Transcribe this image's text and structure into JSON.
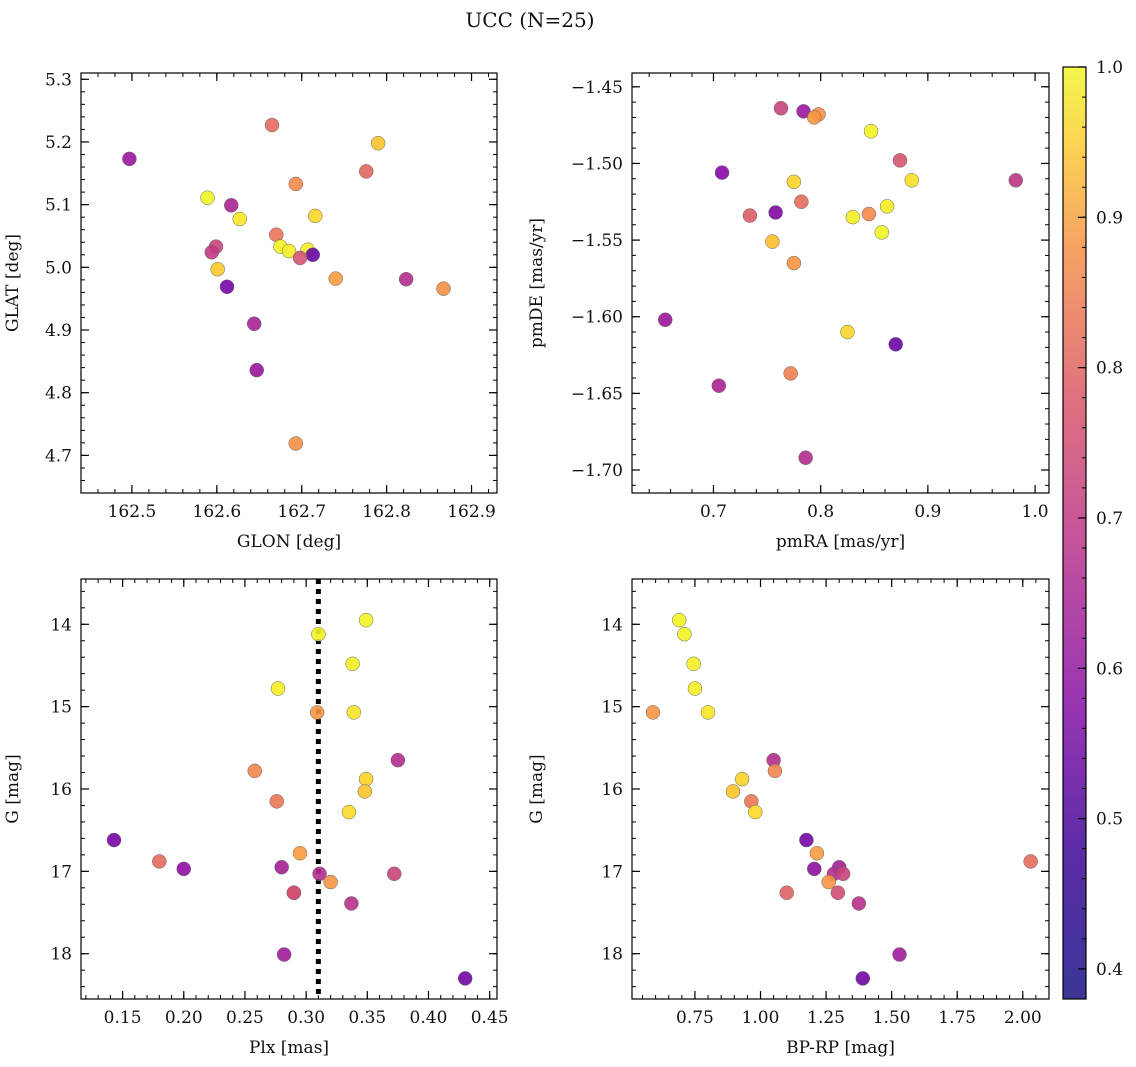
{
  "title": "UCC (N=25)",
  "colorbar": {
    "range": [
      0.38,
      1.0
    ],
    "ticks": [
      0.4,
      0.5,
      0.6,
      0.7,
      0.8,
      0.9,
      1.0
    ],
    "tick_labels": [
      "0.4",
      "0.5",
      "0.6",
      "0.7",
      "0.8",
      "0.9",
      "1.0"
    ],
    "colormap": "plasma"
  },
  "chart_data": [
    {
      "type": "scatter",
      "id": "glon-glat",
      "xlabel": "GLON [deg]",
      "ylabel": "GLAT [deg]",
      "xlim": [
        162.44,
        162.93
      ],
      "ylim": [
        4.64,
        5.31
      ],
      "y_inverted": false,
      "xticks": [
        162.5,
        162.6,
        162.7,
        162.8,
        162.9
      ],
      "xtick_labels": [
        "162.5",
        "162.6",
        "162.7",
        "162.8",
        "162.9"
      ],
      "yticks": [
        4.7,
        4.8,
        4.9,
        5.0,
        5.1,
        5.2,
        5.3
      ],
      "ytick_labels": [
        "4.7",
        "4.8",
        "4.9",
        "5.0",
        "5.1",
        "5.2",
        "5.3"
      ],
      "points": [
        {
          "x": 162.497,
          "y": 5.173,
          "c": 0.5
        },
        {
          "x": 162.665,
          "y": 5.227,
          "c": 0.68
        },
        {
          "x": 162.79,
          "y": 5.198,
          "c": 0.84
        },
        {
          "x": 162.776,
          "y": 5.153,
          "c": 0.67
        },
        {
          "x": 162.693,
          "y": 5.133,
          "c": 0.74
        },
        {
          "x": 162.589,
          "y": 5.111,
          "c": 0.98
        },
        {
          "x": 162.617,
          "y": 5.099,
          "c": 0.53
        },
        {
          "x": 162.716,
          "y": 5.082,
          "c": 0.88
        },
        {
          "x": 162.627,
          "y": 5.077,
          "c": 0.92
        },
        {
          "x": 162.67,
          "y": 5.052,
          "c": 0.7
        },
        {
          "x": 162.599,
          "y": 5.033,
          "c": 0.6
        },
        {
          "x": 162.675,
          "y": 5.033,
          "c": 0.97
        },
        {
          "x": 162.594,
          "y": 5.024,
          "c": 0.58
        },
        {
          "x": 162.685,
          "y": 5.026,
          "c": 0.96
        },
        {
          "x": 162.707,
          "y": 5.028,
          "c": 0.95
        },
        {
          "x": 162.713,
          "y": 5.02,
          "c": 0.42
        },
        {
          "x": 162.698,
          "y": 5.015,
          "c": 0.63
        },
        {
          "x": 162.601,
          "y": 4.997,
          "c": 0.85
        },
        {
          "x": 162.74,
          "y": 4.982,
          "c": 0.77
        },
        {
          "x": 162.823,
          "y": 4.981,
          "c": 0.55
        },
        {
          "x": 162.867,
          "y": 4.966,
          "c": 0.75
        },
        {
          "x": 162.612,
          "y": 4.969,
          "c": 0.44
        },
        {
          "x": 162.644,
          "y": 4.91,
          "c": 0.53
        },
        {
          "x": 162.647,
          "y": 4.836,
          "c": 0.5
        },
        {
          "x": 162.693,
          "y": 4.719,
          "c": 0.75
        }
      ]
    },
    {
      "type": "scatter",
      "id": "pmra-pmde",
      "xlabel": "pmRA [mas/yr]",
      "ylabel": "pmDE [mas/yr]",
      "xlim": [
        0.624,
        1.013
      ],
      "ylim": [
        -1.715,
        -1.441
      ],
      "y_inverted": false,
      "xticks": [
        0.7,
        0.8,
        0.9,
        1.0
      ],
      "xtick_labels": [
        "0.7",
        "0.8",
        "0.9",
        "1.0"
      ],
      "yticks": [
        -1.7,
        -1.65,
        -1.6,
        -1.55,
        -1.5,
        -1.45
      ],
      "ytick_labels": [
        "−1.70",
        "−1.65",
        "−1.60",
        "−1.55",
        "−1.50",
        "−1.45"
      ],
      "points": [
        {
          "x": 0.763,
          "y": -1.464,
          "c": 0.6
        },
        {
          "x": 0.784,
          "y": -1.466,
          "c": 0.5
        },
        {
          "x": 0.798,
          "y": -1.468,
          "c": 0.75
        },
        {
          "x": 0.794,
          "y": -1.47,
          "c": 0.76
        },
        {
          "x": 0.847,
          "y": -1.479,
          "c": 0.98
        },
        {
          "x": 0.874,
          "y": -1.498,
          "c": 0.63
        },
        {
          "x": 0.708,
          "y": -1.506,
          "c": 0.47
        },
        {
          "x": 0.885,
          "y": -1.511,
          "c": 0.9
        },
        {
          "x": 0.982,
          "y": -1.511,
          "c": 0.57
        },
        {
          "x": 0.775,
          "y": -1.512,
          "c": 0.87
        },
        {
          "x": 0.782,
          "y": -1.525,
          "c": 0.68
        },
        {
          "x": 0.862,
          "y": -1.528,
          "c": 0.94
        },
        {
          "x": 0.734,
          "y": -1.534,
          "c": 0.65
        },
        {
          "x": 0.758,
          "y": -1.532,
          "c": 0.45
        },
        {
          "x": 0.845,
          "y": -1.533,
          "c": 0.74
        },
        {
          "x": 0.83,
          "y": -1.535,
          "c": 0.96
        },
        {
          "x": 0.857,
          "y": -1.545,
          "c": 0.98
        },
        {
          "x": 0.755,
          "y": -1.551,
          "c": 0.83
        },
        {
          "x": 0.775,
          "y": -1.565,
          "c": 0.76
        },
        {
          "x": 0.655,
          "y": -1.602,
          "c": 0.5
        },
        {
          "x": 0.825,
          "y": -1.61,
          "c": 0.88
        },
        {
          "x": 0.87,
          "y": -1.618,
          "c": 0.42
        },
        {
          "x": 0.772,
          "y": -1.637,
          "c": 0.72
        },
        {
          "x": 0.705,
          "y": -1.645,
          "c": 0.53
        },
        {
          "x": 0.786,
          "y": -1.692,
          "c": 0.55
        }
      ]
    },
    {
      "type": "scatter",
      "id": "plx-g",
      "xlabel": "Plx [mas]",
      "ylabel": "G [mag]",
      "xlim": [
        0.116,
        0.456
      ],
      "ylim": [
        13.45,
        18.55
      ],
      "y_inverted": true,
      "vline": {
        "x": 0.31,
        "style": "dotted"
      },
      "xticks": [
        0.15,
        0.2,
        0.25,
        0.3,
        0.35,
        0.4,
        0.45
      ],
      "xtick_labels": [
        "0.15",
        "0.20",
        "0.25",
        "0.30",
        "0.35",
        "0.40",
        "0.45"
      ],
      "yticks": [
        14,
        15,
        16,
        17,
        18
      ],
      "ytick_labels": [
        "14",
        "15",
        "16",
        "17",
        "18"
      ],
      "points": [
        {
          "x": 0.349,
          "y": 13.95,
          "c": 0.98
        },
        {
          "x": 0.31,
          "y": 14.12,
          "c": 0.97
        },
        {
          "x": 0.338,
          "y": 14.48,
          "c": 0.96
        },
        {
          "x": 0.277,
          "y": 14.78,
          "c": 0.95
        },
        {
          "x": 0.309,
          "y": 15.07,
          "c": 0.76
        },
        {
          "x": 0.339,
          "y": 15.07,
          "c": 0.91
        },
        {
          "x": 0.375,
          "y": 15.65,
          "c": 0.55
        },
        {
          "x": 0.258,
          "y": 15.78,
          "c": 0.73
        },
        {
          "x": 0.349,
          "y": 15.88,
          "c": 0.87
        },
        {
          "x": 0.348,
          "y": 16.03,
          "c": 0.84
        },
        {
          "x": 0.276,
          "y": 16.15,
          "c": 0.7
        },
        {
          "x": 0.335,
          "y": 16.28,
          "c": 0.89
        },
        {
          "x": 0.143,
          "y": 16.62,
          "c": 0.44
        },
        {
          "x": 0.295,
          "y": 16.78,
          "c": 0.77
        },
        {
          "x": 0.18,
          "y": 16.88,
          "c": 0.68
        },
        {
          "x": 0.2,
          "y": 16.97,
          "c": 0.48
        },
        {
          "x": 0.28,
          "y": 16.95,
          "c": 0.52
        },
        {
          "x": 0.311,
          "y": 17.03,
          "c": 0.55
        },
        {
          "x": 0.372,
          "y": 17.03,
          "c": 0.6
        },
        {
          "x": 0.32,
          "y": 17.13,
          "c": 0.76
        },
        {
          "x": 0.29,
          "y": 17.26,
          "c": 0.66
        },
        {
          "x": 0.29,
          "y": 17.26,
          "c": 0.62
        },
        {
          "x": 0.337,
          "y": 17.39,
          "c": 0.56
        },
        {
          "x": 0.282,
          "y": 18.01,
          "c": 0.51
        },
        {
          "x": 0.43,
          "y": 18.3,
          "c": 0.43
        }
      ]
    },
    {
      "type": "scatter",
      "id": "bprp-g",
      "xlabel": "BP-RP [mag]",
      "ylabel": "G [mag]",
      "xlim": [
        0.51,
        2.1
      ],
      "ylim": [
        13.45,
        18.55
      ],
      "y_inverted": true,
      "xticks": [
        0.75,
        1.0,
        1.25,
        1.5,
        1.75,
        2.0
      ],
      "xtick_labels": [
        "0.75",
        "1.00",
        "1.25",
        "1.50",
        "1.75",
        "2.00"
      ],
      "yticks": [
        14,
        15,
        16,
        17,
        18
      ],
      "ytick_labels": [
        "14",
        "15",
        "16",
        "17",
        "18"
      ],
      "points": [
        {
          "x": 0.69,
          "y": 13.95,
          "c": 0.98
        },
        {
          "x": 0.71,
          "y": 14.12,
          "c": 0.97
        },
        {
          "x": 0.745,
          "y": 14.48,
          "c": 0.96
        },
        {
          "x": 0.75,
          "y": 14.78,
          "c": 0.95
        },
        {
          "x": 0.59,
          "y": 15.07,
          "c": 0.76
        },
        {
          "x": 0.8,
          "y": 15.07,
          "c": 0.91
        },
        {
          "x": 1.05,
          "y": 15.65,
          "c": 0.55
        },
        {
          "x": 1.055,
          "y": 15.78,
          "c": 0.73
        },
        {
          "x": 0.93,
          "y": 15.88,
          "c": 0.87
        },
        {
          "x": 0.895,
          "y": 16.03,
          "c": 0.84
        },
        {
          "x": 0.965,
          "y": 16.15,
          "c": 0.7
        },
        {
          "x": 0.98,
          "y": 16.28,
          "c": 0.89
        },
        {
          "x": 1.175,
          "y": 16.62,
          "c": 0.44
        },
        {
          "x": 1.215,
          "y": 16.78,
          "c": 0.77
        },
        {
          "x": 2.03,
          "y": 16.88,
          "c": 0.68
        },
        {
          "x": 1.3,
          "y": 16.95,
          "c": 0.52
        },
        {
          "x": 1.205,
          "y": 16.97,
          "c": 0.48
        },
        {
          "x": 1.28,
          "y": 17.03,
          "c": 0.55
        },
        {
          "x": 1.315,
          "y": 17.03,
          "c": 0.6
        },
        {
          "x": 1.26,
          "y": 17.13,
          "c": 0.76
        },
        {
          "x": 1.1,
          "y": 17.26,
          "c": 0.66
        },
        {
          "x": 1.295,
          "y": 17.26,
          "c": 0.62
        },
        {
          "x": 1.375,
          "y": 17.39,
          "c": 0.56
        },
        {
          "x": 1.53,
          "y": 18.01,
          "c": 0.51
        },
        {
          "x": 1.39,
          "y": 18.3,
          "c": 0.43
        }
      ]
    }
  ]
}
